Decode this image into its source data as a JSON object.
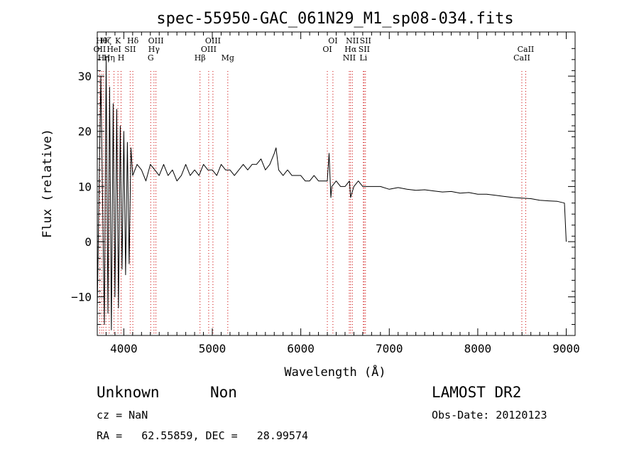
{
  "chart_data": {
    "type": "line",
    "title": "spec-55950-GAC_061N29_M1_sp08-034.fits",
    "xlabel": "Wavelength (Å)",
    "ylabel": "Flux (relative)",
    "xlim": [
      3700,
      9100
    ],
    "ylim": [
      -17,
      38
    ],
    "xticks": [
      4000,
      5000,
      6000,
      7000,
      8000,
      9000
    ],
    "yticks": [
      -10,
      0,
      10,
      20,
      30
    ],
    "ytick_labels": [
      "−10",
      "0",
      "10",
      "20",
      "30"
    ],
    "grid": false,
    "line_color": "#000000",
    "line_marker_color": "#cc0000",
    "series": [
      {
        "x": [
          3700,
          3740,
          3780,
          3800,
          3820,
          3840,
          3860,
          3880,
          3900,
          3920,
          3940,
          3960,
          3980,
          4000,
          4020,
          4040,
          4060,
          4080,
          4100,
          4150,
          4200,
          4250,
          4300,
          4350,
          4400,
          4450,
          4500,
          4550,
          4600,
          4650,
          4700,
          4750,
          4800,
          4850,
          4900,
          4950,
          5000,
          5050,
          5100,
          5150,
          5200,
          5250,
          5300,
          5350,
          5400,
          5450,
          5500,
          5550,
          5600,
          5650,
          5700,
          5720,
          5750,
          5800,
          5850,
          5900,
          5950,
          6000,
          6050,
          6100,
          6150,
          6200,
          6250,
          6300,
          6320,
          6340,
          6350,
          6400,
          6450,
          6500,
          6550,
          6563,
          6600,
          6650,
          6700,
          6750,
          6800,
          6900,
          7000,
          7100,
          7200,
          7300,
          7400,
          7500,
          7600,
          7700,
          7800,
          7900,
          8000,
          8100,
          8200,
          8300,
          8400,
          8500,
          8600,
          8700,
          8800,
          8900,
          8980,
          9000
        ],
        "y": [
          -12,
          30,
          -15,
          33,
          -13,
          28,
          -16,
          25,
          -10,
          24,
          -12,
          21,
          -5,
          20,
          -6,
          18,
          -4,
          17,
          12,
          14,
          13,
          11,
          14,
          13,
          12,
          14,
          12,
          13,
          11,
          12,
          14,
          12,
          13,
          12,
          14,
          13,
          13,
          12,
          14,
          13,
          13,
          12,
          13,
          14,
          13,
          14,
          14,
          15,
          13,
          14,
          16,
          17,
          13,
          12,
          13,
          12,
          12,
          12,
          11,
          11,
          12,
          11,
          11,
          11,
          16,
          8,
          10,
          11,
          10,
          10,
          11,
          8,
          10,
          11,
          10,
          10,
          10,
          10,
          9.5,
          9.8,
          9.5,
          9.3,
          9.4,
          9.2,
          9.0,
          9.1,
          8.8,
          8.9,
          8.6,
          8.6,
          8.4,
          8.2,
          8.0,
          7.9,
          7.8,
          7.5,
          7.4,
          7.3,
          7.0,
          0
        ]
      }
    ],
    "annotations": [
      {
        "x": 3727,
        "label": "OII",
        "row": 1
      },
      {
        "x": 3750,
        "label": "Hθ",
        "row": 0
      },
      {
        "x": 3771,
        "label": "Hη",
        "row": 2
      },
      {
        "x": 3798,
        "label": "Hζ",
        "row": 0
      },
      {
        "x": 3835,
        "label": "Hη",
        "row": 2
      },
      {
        "x": 3889,
        "label": "HeI",
        "row": 1
      },
      {
        "x": 3934,
        "label": "K",
        "row": 0
      },
      {
        "x": 3969,
        "label": "H",
        "row": 2
      },
      {
        "x": 4072,
        "label": "SII",
        "row": 1
      },
      {
        "x": 4102,
        "label": "Hδ",
        "row": 0
      },
      {
        "x": 4304,
        "label": "G",
        "row": 2
      },
      {
        "x": 4341,
        "label": "Hγ",
        "row": 1
      },
      {
        "x": 4363,
        "label": "OIII",
        "row": 0
      },
      {
        "x": 4861,
        "label": "Hβ",
        "row": 2
      },
      {
        "x": 4959,
        "label": "OIII",
        "row": 1
      },
      {
        "x": 5007,
        "label": "OIII",
        "row": 0
      },
      {
        "x": 5175,
        "label": "Mg",
        "row": 2
      },
      {
        "x": 6300,
        "label": "OI",
        "row": 1
      },
      {
        "x": 6363,
        "label": "OI",
        "row": 0
      },
      {
        "x": 6548,
        "label": "NII",
        "row": 2
      },
      {
        "x": 6563,
        "label": "Hα",
        "row": 1
      },
      {
        "x": 6583,
        "label": "NII",
        "row": 0
      },
      {
        "x": 6707,
        "label": "Li",
        "row": 2
      },
      {
        "x": 6716,
        "label": "SII",
        "row": 1
      },
      {
        "x": 6731,
        "label": "SII",
        "row": 0
      },
      {
        "x": 8498,
        "label": "CaII",
        "row": 2
      },
      {
        "x": 8542,
        "label": "CaII",
        "row": 1
      }
    ]
  },
  "info": {
    "class_label": "Unknown",
    "subclass_label": "Non",
    "survey": "LAMOST DR2",
    "cz": "cz = NaN",
    "obs_date": "Obs-Date: 20120123",
    "coords": "RA =   62.55859, DEC =   28.99574"
  }
}
